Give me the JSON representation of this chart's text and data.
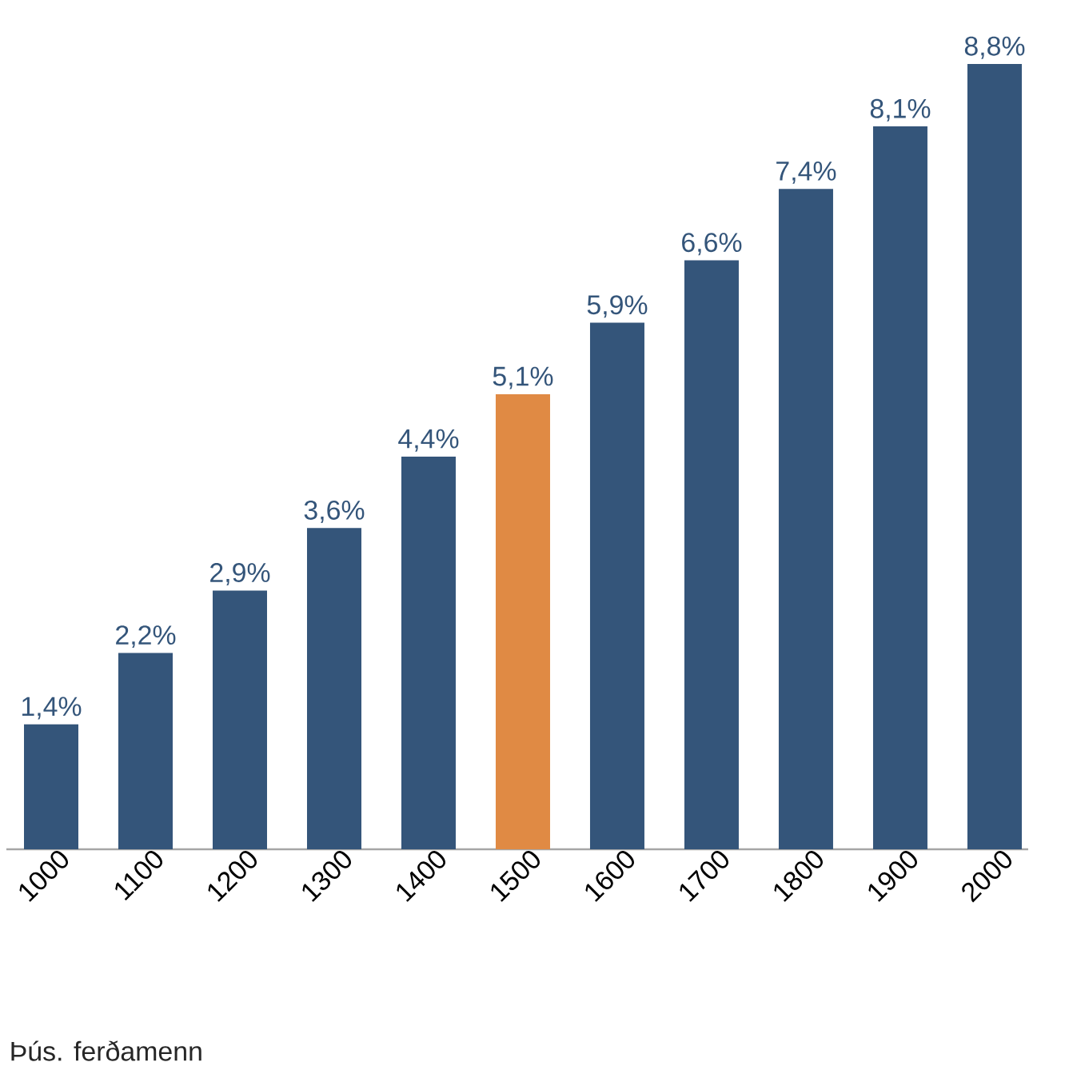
{
  "chart_data": {
    "type": "bar",
    "annotations": [
      "Þús. ferðamenn"
    ],
    "categories": [
      "1000",
      "1100",
      "1200",
      "1300",
      "1400",
      "1500",
      "1600",
      "1700",
      "1800",
      "1900",
      "2000"
    ],
    "values": [
      1.4,
      2.2,
      2.9,
      3.6,
      4.4,
      5.1,
      5.9,
      6.6,
      7.4,
      8.1,
      8.8
    ],
    "value_labels": [
      "1,4%",
      "2,2%",
      "2,9%",
      "3,6%",
      "4,4%",
      "5,1%",
      "5,9%",
      "6,6%",
      "7,4%",
      "8,1%",
      "8,8%"
    ],
    "colors": [
      "#34557a",
      "#34557a",
      "#34557a",
      "#34557a",
      "#34557a",
      "#e08a44",
      "#34557a",
      "#34557a",
      "#34557a",
      "#34557a",
      "#34557a"
    ]
  }
}
